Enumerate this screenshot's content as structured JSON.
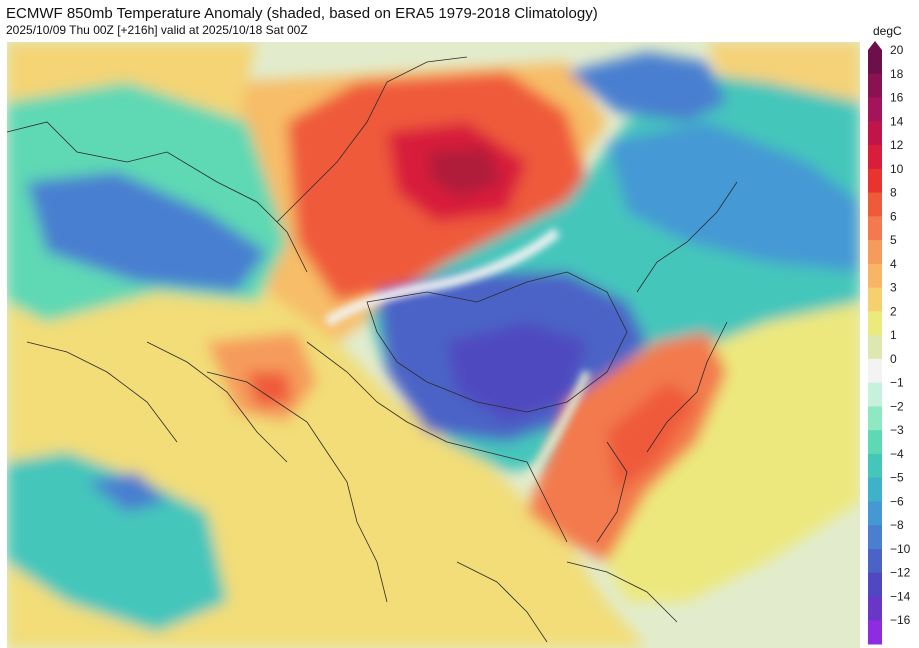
{
  "header": {
    "title": "ECMWF 850mb Temperature Anomaly (shaded, based on ERA5 1979-2018 Climatology)",
    "subtitle": "2025/10/09 Thu 00Z [+216h] valid at 2025/10/18 Sat 00Z"
  },
  "colorbar": {
    "unit": "degC",
    "levels": [
      {
        "label": "20",
        "color": "#6d0f4a"
      },
      {
        "label": "18",
        "color": "#8a1252"
      },
      {
        "label": "16",
        "color": "#a3145a"
      },
      {
        "label": "14",
        "color": "#c0144a"
      },
      {
        "label": "12",
        "color": "#d81e3a"
      },
      {
        "label": "10",
        "color": "#e8332e"
      },
      {
        "label": "8",
        "color": "#ef5a3a"
      },
      {
        "label": "6",
        "color": "#f27a4e"
      },
      {
        "label": "5",
        "color": "#f59b5c"
      },
      {
        "label": "4",
        "color": "#f7b565"
      },
      {
        "label": "3",
        "color": "#f6d06e"
      },
      {
        "label": "2",
        "color": "#ecea7c"
      },
      {
        "label": "1",
        "color": "#dde8b0"
      },
      {
        "label": "0",
        "color": "#f3f3f3"
      },
      {
        "label": "−1",
        "color": "#c6f1dc"
      },
      {
        "label": "−2",
        "color": "#8fe8c2"
      },
      {
        "label": "−3",
        "color": "#5fd8b4"
      },
      {
        "label": "−4",
        "color": "#44c6bb"
      },
      {
        "label": "−5",
        "color": "#3fb1c9"
      },
      {
        "label": "−6",
        "color": "#4499d4"
      },
      {
        "label": "−8",
        "color": "#4a7fd0"
      },
      {
        "label": "−10",
        "color": "#4b63c6"
      },
      {
        "label": "−12",
        "color": "#5048c0"
      },
      {
        "label": "−14",
        "color": "#6a36c8"
      },
      {
        "label": "−16",
        "color": "#8d2ce0"
      }
    ]
  }
}
